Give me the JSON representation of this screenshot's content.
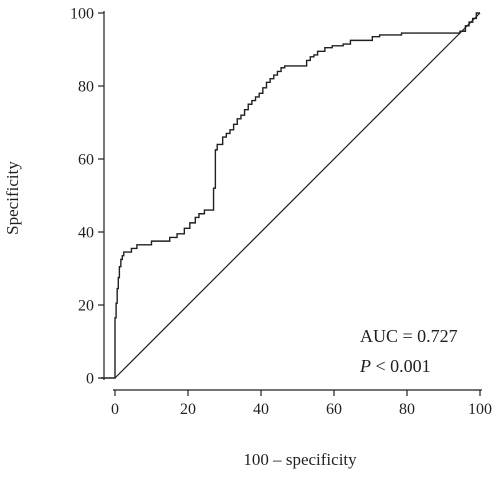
{
  "chart_data": {
    "type": "line",
    "title": "",
    "xlabel": "100 – specificity",
    "ylabel": "Specificity",
    "xlim": [
      0,
      100
    ],
    "ylim": [
      0,
      100
    ],
    "xticks": [
      0,
      20,
      40,
      60,
      80,
      100
    ],
    "yticks": [
      0,
      20,
      40,
      60,
      80,
      100
    ],
    "grid": false,
    "legend": "none",
    "series": [
      {
        "kind": "step",
        "x": [
          0,
          0.3,
          0.6,
          0.9,
          1.2,
          1.6,
          2.0,
          2.4,
          3.0,
          4.5,
          6.0,
          8.0,
          10.0,
          12.0,
          15.0,
          17.0,
          19.0,
          20.5,
          22.0,
          23.0,
          24.5,
          27.0,
          27.5,
          28.0,
          29.5,
          30.5,
          31.5,
          32.5,
          33.5,
          34.5,
          35.5,
          36.5,
          37.5,
          38.5,
          39.5,
          40.5,
          41.5,
          42.5,
          43.5,
          44.5,
          45.5,
          46.5,
          47.5,
          52.5,
          53.5,
          54.5,
          55.5,
          57.5,
          59.5,
          62.5,
          64.5,
          67.5,
          70.5,
          72.5,
          78.5,
          84.5,
          90.5,
          94.5,
          96.0,
          97.0,
          98.0,
          99.0,
          100
        ],
        "y": [
          0,
          16.5,
          20.5,
          24.5,
          27.5,
          30.5,
          32.5,
          33.5,
          34.5,
          34.5,
          35.5,
          36.5,
          36.5,
          37.5,
          37.5,
          38.5,
          39.5,
          41.0,
          42.5,
          44.0,
          45.0,
          46.0,
          52.0,
          62.5,
          64.0,
          66.0,
          67.0,
          68.0,
          69.5,
          71.0,
          72.0,
          73.5,
          75.0,
          76.0,
          77.0,
          78.0,
          79.5,
          81.0,
          82.0,
          83.0,
          84.0,
          85.0,
          85.5,
          85.5,
          87.0,
          88.0,
          88.5,
          89.5,
          90.5,
          91.0,
          91.5,
          92.5,
          92.5,
          93.5,
          94.0,
          94.5,
          94.5,
          94.5,
          95.0,
          96.5,
          97.5,
          98.5,
          100
        ]
      },
      {
        "kind": "reference",
        "x": [
          0,
          100
        ],
        "y": [
          0,
          100
        ]
      }
    ],
    "annotations": [
      {
        "text": "AUC = 0.727",
        "italic_prefix": ""
      },
      {
        "italic_prefix": "P",
        "text": " < 0.001"
      }
    ]
  }
}
